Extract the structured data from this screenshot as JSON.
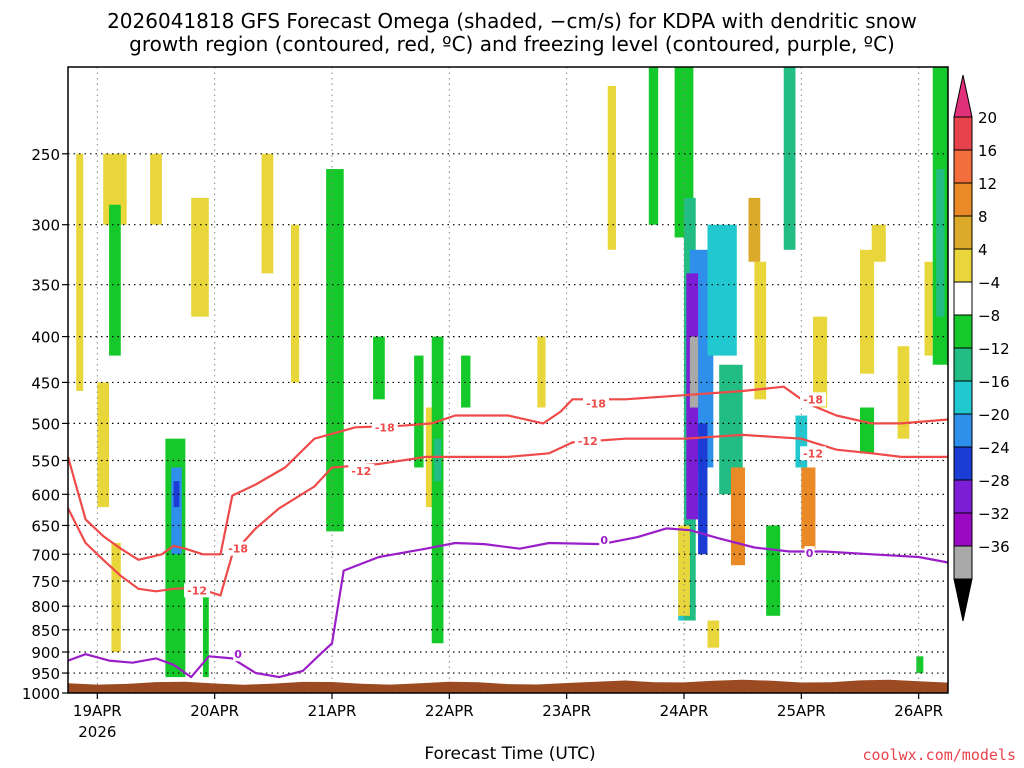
{
  "chart_data": {
    "type": "heatmap",
    "title_line1": "2026041818 GFS Forecast Omega (shaded, −cm/s) for KDPA with dendritic snow",
    "title_line2": "growth region (contoured, red, ºC) and freezing level (contoured, purple, ºC)",
    "xlabel": "Forecast Time (UTC)",
    "ylabel": "",
    "x_ticks": [
      {
        "day": 0,
        "label": "19APR"
      },
      {
        "day": 1,
        "label": "20APR"
      },
      {
        "day": 2,
        "label": "21APR"
      },
      {
        "day": 3,
        "label": "22APR"
      },
      {
        "day": 4,
        "label": "23APR"
      },
      {
        "day": 5,
        "label": "24APR"
      },
      {
        "day": 6,
        "label": "25APR"
      },
      {
        "day": 7,
        "label": "26APR"
      }
    ],
    "x_year_label": "2026",
    "xlim_days": [
      -0.25,
      7.25
    ],
    "y_scale": "pressure (hPa, inverted)",
    "y_ticks": [
      250,
      300,
      350,
      400,
      450,
      500,
      550,
      600,
      650,
      700,
      750,
      800,
      850,
      900,
      950,
      1000
    ],
    "ylim": [
      1000,
      200
    ],
    "grid": true,
    "colorbar": {
      "labels": [
        "20",
        "16",
        "12",
        "8",
        "4",
        "−4",
        "−8",
        "−12",
        "−16",
        "−20",
        "−24",
        "−28",
        "−32",
        "−36"
      ],
      "colors": [
        "#e8434d",
        "#f26e3c",
        "#e98a26",
        "#dbaa2b",
        "#e8d63b",
        "#ffffff",
        "#16c92a",
        "#22bd84",
        "#21c8cf",
        "#2e90ea",
        "#1b3dd6",
        "#7c1ed6",
        "#9a09c4",
        "#a9a9a9"
      ],
      "top_arrow_color": "#e0307a",
      "bottom_arrow_color": "#000000"
    },
    "ground_color": "#9b4a22",
    "series": [
      {
        "kind": "snow-growth",
        "label": "-18",
        "color": "#ef4a4a",
        "points": [
          [
            -0.25,
            545
          ],
          [
            -0.1,
            640
          ],
          [
            0.05,
            668
          ],
          [
            0.2,
            690
          ],
          [
            0.35,
            710
          ],
          [
            0.55,
            700
          ],
          [
            0.65,
            685
          ],
          [
            0.75,
            690
          ],
          [
            0.9,
            700
          ],
          [
            1.05,
            700
          ],
          [
            1.15,
            602
          ],
          [
            1.35,
            585
          ],
          [
            1.6,
            560
          ],
          [
            1.85,
            520
          ],
          [
            2.2,
            505
          ],
          [
            2.6,
            503
          ],
          [
            2.85,
            500
          ],
          [
            3.05,
            490
          ],
          [
            3.5,
            490
          ],
          [
            3.8,
            500
          ],
          [
            3.95,
            485
          ],
          [
            4.05,
            470
          ],
          [
            4.5,
            470
          ],
          [
            5.0,
            465
          ],
          [
            5.5,
            460
          ],
          [
            5.85,
            455
          ],
          [
            6.05,
            475
          ],
          [
            6.3,
            490
          ],
          [
            6.6,
            500
          ],
          [
            6.85,
            500
          ],
          [
            7.25,
            495
          ]
        ]
      },
      {
        "kind": "snow-growth",
        "label": "-12",
        "color": "#ef4a4a",
        "points": [
          [
            -0.25,
            622
          ],
          [
            -0.1,
            680
          ],
          [
            0.05,
            710
          ],
          [
            0.2,
            740
          ],
          [
            0.35,
            765
          ],
          [
            0.5,
            770
          ],
          [
            0.65,
            765
          ],
          [
            0.85,
            763
          ],
          [
            1.05,
            778
          ],
          [
            1.15,
            700
          ],
          [
            1.35,
            655
          ],
          [
            1.55,
            622
          ],
          [
            1.85,
            588
          ],
          [
            2.0,
            560
          ],
          [
            2.4,
            555
          ],
          [
            2.8,
            545
          ],
          [
            3.1,
            545
          ],
          [
            3.5,
            545
          ],
          [
            3.85,
            540
          ],
          [
            4.05,
            525
          ],
          [
            4.5,
            520
          ],
          [
            5.0,
            520
          ],
          [
            5.5,
            515
          ],
          [
            6.0,
            520
          ],
          [
            6.3,
            535
          ],
          [
            6.6,
            540
          ],
          [
            6.85,
            545
          ],
          [
            7.25,
            545
          ]
        ]
      },
      {
        "kind": "freezing-level",
        "label": "0",
        "color": "#9a1ec8",
        "points": [
          [
            -0.25,
            920
          ],
          [
            -0.1,
            905
          ],
          [
            0.1,
            920
          ],
          [
            0.3,
            925
          ],
          [
            0.5,
            915
          ],
          [
            0.65,
            930
          ],
          [
            0.8,
            960
          ],
          [
            0.95,
            910
          ],
          [
            1.15,
            915
          ],
          [
            1.35,
            950
          ],
          [
            1.55,
            960
          ],
          [
            1.75,
            945
          ],
          [
            1.9,
            905
          ],
          [
            2.0,
            880
          ],
          [
            2.1,
            730
          ],
          [
            2.4,
            705
          ],
          [
            2.8,
            690
          ],
          [
            3.05,
            680
          ],
          [
            3.3,
            682
          ],
          [
            3.6,
            690
          ],
          [
            3.85,
            680
          ],
          [
            4.3,
            682
          ],
          [
            4.6,
            670
          ],
          [
            4.85,
            655
          ],
          [
            5.05,
            658
          ],
          [
            5.3,
            672
          ],
          [
            5.6,
            688
          ],
          [
            5.9,
            695
          ],
          [
            6.2,
            695
          ],
          [
            6.6,
            700
          ],
          [
            7.0,
            705
          ],
          [
            7.25,
            715
          ]
        ]
      }
    ],
    "contour_labels": [
      {
        "text": "-18",
        "day": 1.2,
        "p": 690,
        "color": "#ef4a4a"
      },
      {
        "text": "-12",
        "day": 0.85,
        "p": 768,
        "color": "#ef4a4a"
      },
      {
        "text": "0",
        "day": 1.2,
        "p": 905,
        "color": "#9a1ec8"
      },
      {
        "text": "-12",
        "day": 2.25,
        "p": 565,
        "color": "#ef4a4a"
      },
      {
        "text": "-18",
        "day": 2.45,
        "p": 505,
        "color": "#ef4a4a"
      },
      {
        "text": "-18",
        "day": 4.25,
        "p": 475,
        "color": "#ef4a4a"
      },
      {
        "text": "-12",
        "day": 4.18,
        "p": 523,
        "color": "#ef4a4a"
      },
      {
        "text": "0",
        "day": 4.32,
        "p": 675,
        "color": "#9a1ec8"
      },
      {
        "text": "-18",
        "day": 6.1,
        "p": 470,
        "color": "#ef4a4a"
      },
      {
        "text": "-12",
        "day": 6.1,
        "p": 540,
        "color": "#ef4a4a"
      },
      {
        "text": "0",
        "day": 6.07,
        "p": 698,
        "color": "#9a1ec8"
      }
    ],
    "shaded_regions": [
      {
        "day0": -0.18,
        "day1": -0.12,
        "p0": 250,
        "p1": 460,
        "color": "#e8d63b"
      },
      {
        "day0": 0.05,
        "day1": 0.25,
        "p0": 250,
        "p1": 300,
        "color": "#e8d63b"
      },
      {
        "day0": 0.1,
        "day1": 0.2,
        "p0": 285,
        "p1": 420,
        "color": "#16c92a"
      },
      {
        "day0": 0.0,
        "day1": 0.1,
        "p0": 450,
        "p1": 620,
        "color": "#e8d63b"
      },
      {
        "day0": 0.12,
        "day1": 0.2,
        "p0": 680,
        "p1": 900,
        "color": "#e8d63b"
      },
      {
        "day0": 0.45,
        "day1": 0.55,
        "p0": 250,
        "p1": 300,
        "color": "#e8d63b"
      },
      {
        "day0": 0.58,
        "day1": 0.75,
        "p0": 520,
        "p1": 960,
        "color": "#16c92a"
      },
      {
        "day0": 0.63,
        "day1": 0.72,
        "p0": 560,
        "p1": 700,
        "color": "#2e90ea"
      },
      {
        "day0": 0.65,
        "day1": 0.7,
        "p0": 580,
        "p1": 620,
        "color": "#1b3dd6"
      },
      {
        "day0": 0.8,
        "day1": 0.95,
        "p0": 280,
        "p1": 380,
        "color": "#e8d63b"
      },
      {
        "day0": 0.9,
        "day1": 0.95,
        "p0": 760,
        "p1": 960,
        "color": "#16c92a"
      },
      {
        "day0": 1.4,
        "day1": 1.5,
        "p0": 250,
        "p1": 340,
        "color": "#e8d63b"
      },
      {
        "day0": 1.65,
        "day1": 1.72,
        "p0": 300,
        "p1": 450,
        "color": "#e8d63b"
      },
      {
        "day0": 1.95,
        "day1": 2.1,
        "p0": 260,
        "p1": 660,
        "color": "#16c92a"
      },
      {
        "day0": 2.35,
        "day1": 2.45,
        "p0": 400,
        "p1": 470,
        "color": "#16c92a"
      },
      {
        "day0": 2.7,
        "day1": 2.78,
        "p0": 420,
        "p1": 560,
        "color": "#16c92a"
      },
      {
        "day0": 2.8,
        "day1": 2.86,
        "p0": 480,
        "p1": 620,
        "color": "#e8d63b"
      },
      {
        "day0": 2.85,
        "day1": 2.95,
        "p0": 400,
        "p1": 880,
        "color": "#16c92a"
      },
      {
        "day0": 2.87,
        "day1": 2.93,
        "p0": 520,
        "p1": 580,
        "color": "#22bd84"
      },
      {
        "day0": 3.1,
        "day1": 3.18,
        "p0": 420,
        "p1": 480,
        "color": "#16c92a"
      },
      {
        "day0": 3.75,
        "day1": 3.82,
        "p0": 400,
        "p1": 480,
        "color": "#e8d63b"
      },
      {
        "day0": 4.35,
        "day1": 4.42,
        "p0": 210,
        "p1": 320,
        "color": "#e8d63b"
      },
      {
        "day0": 4.7,
        "day1": 4.78,
        "p0": 200,
        "p1": 300,
        "color": "#16c92a"
      },
      {
        "day0": 4.92,
        "day1": 5.08,
        "p0": 200,
        "p1": 310,
        "color": "#16c92a"
      },
      {
        "day0": 5.0,
        "day1": 5.1,
        "p0": 280,
        "p1": 830,
        "color": "#22bd84"
      },
      {
        "day0": 4.95,
        "day1": 5.0,
        "p0": 660,
        "p1": 830,
        "color": "#21c8cf"
      },
      {
        "day0": 5.05,
        "day1": 5.25,
        "p0": 320,
        "p1": 560,
        "color": "#2e90ea"
      },
      {
        "day0": 5.02,
        "day1": 5.12,
        "p0": 340,
        "p1": 640,
        "color": "#7c1ed6"
      },
      {
        "day0": 5.05,
        "day1": 5.12,
        "p0": 400,
        "p1": 480,
        "color": "#a9a9a9"
      },
      {
        "day0": 5.12,
        "day1": 5.2,
        "p0": 500,
        "p1": 700,
        "color": "#1b3dd6"
      },
      {
        "day0": 5.2,
        "day1": 5.45,
        "p0": 300,
        "p1": 420,
        "color": "#21c8cf"
      },
      {
        "day0": 5.3,
        "day1": 5.5,
        "p0": 430,
        "p1": 600,
        "color": "#22bd84"
      },
      {
        "day0": 4.95,
        "day1": 5.05,
        "p0": 650,
        "p1": 820,
        "color": "#e8d63b"
      },
      {
        "day0": 5.2,
        "day1": 5.3,
        "p0": 830,
        "p1": 890,
        "color": "#e8d63b"
      },
      {
        "day0": 5.42,
        "day1": 5.5,
        "p0": 580,
        "p1": 660,
        "color": "#f26e3c"
      },
      {
        "day0": 5.4,
        "day1": 5.52,
        "p0": 560,
        "p1": 720,
        "color": "#e98a26"
      },
      {
        "day0": 5.6,
        "day1": 5.7,
        "p0": 330,
        "p1": 470,
        "color": "#e8d63b"
      },
      {
        "day0": 5.55,
        "day1": 5.65,
        "p0": 280,
        "p1": 330,
        "color": "#dbaa2b"
      },
      {
        "day0": 5.7,
        "day1": 5.82,
        "p0": 650,
        "p1": 820,
        "color": "#16c92a"
      },
      {
        "day0": 5.85,
        "day1": 5.95,
        "p0": 200,
        "p1": 320,
        "color": "#22bd84"
      },
      {
        "day0": 5.95,
        "day1": 6.05,
        "p0": 490,
        "p1": 560,
        "color": "#21c8cf"
      },
      {
        "day0": 6.1,
        "day1": 6.22,
        "p0": 380,
        "p1": 480,
        "color": "#e8d63b"
      },
      {
        "day0": 6.0,
        "day1": 6.12,
        "p0": 560,
        "p1": 690,
        "color": "#e98a26"
      },
      {
        "day0": 6.5,
        "day1": 6.62,
        "p0": 320,
        "p1": 440,
        "color": "#e8d63b"
      },
      {
        "day0": 6.5,
        "day1": 6.62,
        "p0": 480,
        "p1": 540,
        "color": "#16c92a"
      },
      {
        "day0": 6.6,
        "day1": 6.72,
        "p0": 300,
        "p1": 330,
        "color": "#e8d63b"
      },
      {
        "day0": 6.82,
        "day1": 6.92,
        "p0": 410,
        "p1": 520,
        "color": "#e8d63b"
      },
      {
        "day0": 6.98,
        "day1": 7.04,
        "p0": 910,
        "p1": 950,
        "color": "#16c92a"
      },
      {
        "day0": 7.05,
        "day1": 7.12,
        "p0": 330,
        "p1": 420,
        "color": "#e8d63b"
      },
      {
        "day0": 7.12,
        "day1": 7.25,
        "p0": 200,
        "p1": 430,
        "color": "#16c92a"
      },
      {
        "day0": 7.15,
        "day1": 7.22,
        "p0": 260,
        "p1": 380,
        "color": "#22bd84"
      }
    ]
  },
  "credit": "coolwx.com/models"
}
